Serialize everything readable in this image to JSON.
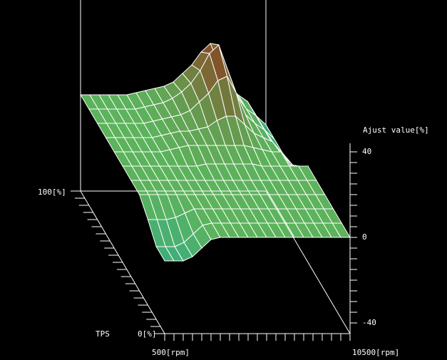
{
  "chart_data": {
    "type": "surface3d",
    "x_axis": {
      "label_min": "500[rpm]",
      "label_max": "10500[rpm]",
      "range": [
        500,
        10500
      ],
      "tick_step": 500
    },
    "y_axis": {
      "title": "TPS",
      "label_min": "0[%]",
      "label_max": "100[%]",
      "range": [
        0,
        100
      ],
      "tick_step": 5
    },
    "z_axis": {
      "title": "Ajust value[%]",
      "ticks": [
        "40",
        "0",
        "-40"
      ],
      "range": [
        -45,
        44
      ],
      "tick_step": 5
    },
    "rpm": [
      500,
      1000,
      1500,
      2000,
      2500,
      3000,
      3500,
      4000,
      4500,
      5000,
      5500,
      6000,
      6500,
      7000,
      7500,
      8000,
      8500,
      9000,
      9500,
      10000,
      10500
    ],
    "tps": [
      0,
      10,
      20,
      30,
      40,
      50,
      60,
      70,
      80,
      90,
      100
    ],
    "z": [
      [
        -11,
        -11,
        -11,
        -9,
        -5,
        -1,
        0,
        0,
        0,
        0,
        0,
        0,
        0,
        0,
        0,
        0,
        0,
        0,
        0,
        0,
        0
      ],
      [
        -11,
        -11,
        -11,
        -9,
        -5,
        -1,
        0,
        0,
        0,
        0,
        0,
        0,
        0,
        0,
        0,
        0,
        0,
        0,
        0,
        0,
        0
      ],
      [
        -5,
        -5,
        -5,
        -4,
        -2,
        0,
        0,
        0,
        0,
        0,
        0,
        0,
        0,
        0,
        0,
        0,
        0,
        0,
        0,
        0,
        0
      ],
      [
        0,
        0,
        0,
        0,
        0,
        0,
        0,
        0,
        0,
        0,
        0,
        0,
        0,
        0,
        0,
        0,
        0,
        0,
        0,
        0,
        0
      ],
      [
        0,
        0,
        0,
        0,
        0,
        0,
        0,
        0,
        0,
        0,
        0,
        0,
        0,
        0,
        0,
        0,
        0,
        0,
        0,
        0,
        0
      ],
      [
        0,
        0,
        0,
        0,
        0,
        0,
        0,
        0,
        0,
        1,
        1,
        1,
        1,
        1,
        1,
        0,
        0,
        0,
        0,
        0,
        0
      ],
      [
        0,
        0,
        0,
        0,
        0,
        0,
        1,
        2,
        3,
        3,
        3,
        3,
        3,
        3,
        3,
        2,
        1,
        0,
        0,
        -6,
        -10
      ],
      [
        0,
        0,
        0,
        0,
        0,
        0,
        1,
        2,
        3,
        3,
        4,
        5,
        8,
        10,
        10,
        6,
        2,
        0,
        -2,
        -8,
        -12
      ],
      [
        0,
        0,
        0,
        0,
        0,
        0,
        1,
        2,
        3,
        4,
        6,
        10,
        14,
        20,
        22,
        14,
        4,
        0,
        -3,
        -10,
        -14
      ],
      [
        0,
        0,
        0,
        0,
        0,
        0,
        1,
        2,
        3,
        5,
        8,
        12,
        18,
        26,
        30,
        18,
        6,
        0,
        -3,
        -10,
        -14
      ],
      [
        0,
        0,
        0,
        0,
        0,
        0,
        1,
        2,
        3,
        4,
        6,
        10,
        14,
        20,
        24,
        14,
        4,
        0,
        -3,
        -10,
        -14
      ]
    ],
    "colors": {
      "low": "#3fae7a",
      "zero": "#5cb35c",
      "high": "#8b3f1f",
      "mesh": "#ffffff",
      "axes": "#ffffff",
      "background": "#000000"
    }
  }
}
